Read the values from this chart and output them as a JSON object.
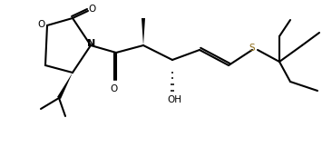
{
  "bg_color": "#ffffff",
  "line_color": "#000000",
  "bond_lw": 1.5,
  "figsize": [
    3.66,
    1.62
  ],
  "dpi": 100,
  "label_O_ring": "O",
  "label_O_co1": "O",
  "label_O_co2": "O",
  "label_N": "N",
  "label_OH": "OH",
  "label_S": "S",
  "S_color": "#8B6914"
}
